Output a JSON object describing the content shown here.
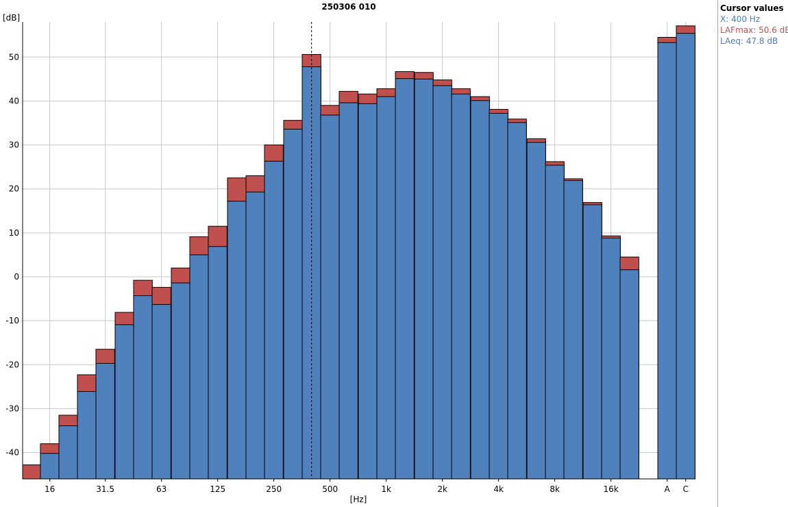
{
  "chart_data": {
    "type": "bar",
    "title": "250306 010",
    "ylabel": "[dB]",
    "xlabel": "[Hz]",
    "ylim": [
      -46,
      58
    ],
    "yticks": [
      -40,
      -30,
      -20,
      -10,
      0,
      10,
      20,
      30,
      40,
      50
    ],
    "grid": true,
    "colors": {
      "LAFmax": "#c0504d",
      "LAeq": "#4f81bd"
    },
    "categories": [
      "12.5",
      "16",
      "20",
      "25",
      "31.5",
      "40",
      "50",
      "63",
      "80",
      "100",
      "125",
      "160",
      "200",
      "250",
      "315",
      "400",
      "500",
      "630",
      "800",
      "1k",
      "1.25k",
      "1.6k",
      "2k",
      "2.5k",
      "3.15k",
      "4k",
      "5k",
      "6.3k",
      "8k",
      "10k",
      "12.5k",
      "16k",
      "20k",
      "A",
      "C"
    ],
    "tick_labels": [
      {
        "index": 1,
        "label": "16"
      },
      {
        "index": 4,
        "label": "31.5"
      },
      {
        "index": 7,
        "label": "63"
      },
      {
        "index": 10,
        "label": "125"
      },
      {
        "index": 13,
        "label": "250"
      },
      {
        "index": 16,
        "label": "500"
      },
      {
        "index": 19,
        "label": "1k"
      },
      {
        "index": 22,
        "label": "2k"
      },
      {
        "index": 25,
        "label": "4k"
      },
      {
        "index": 28,
        "label": "8k"
      },
      {
        "index": 31,
        "label": "16k"
      },
      {
        "index": 33,
        "label": "A"
      },
      {
        "index": 34,
        "label": "C"
      }
    ],
    "series": [
      {
        "name": "LAFmax",
        "values": [
          -42.8,
          -38.0,
          -31.5,
          -22.3,
          -16.5,
          -8.1,
          -0.8,
          -2.4,
          2.0,
          9.1,
          11.5,
          22.5,
          23.0,
          30.0,
          35.6,
          50.6,
          39.0,
          42.2,
          41.6,
          42.8,
          46.7,
          46.5,
          44.8,
          42.8,
          41.0,
          38.1,
          35.9,
          31.4,
          26.2,
          22.3,
          16.9,
          9.3,
          4.5,
          54.5,
          57.1
        ]
      },
      {
        "name": "LAeq",
        "values": [
          -46.0,
          -40.2,
          -33.9,
          -26.1,
          -19.7,
          -10.9,
          -4.3,
          -6.3,
          -1.4,
          5.0,
          6.9,
          17.2,
          19.3,
          26.3,
          33.6,
          47.8,
          36.8,
          39.6,
          39.4,
          41.0,
          45.1,
          45.0,
          43.5,
          41.6,
          40.1,
          37.2,
          35.1,
          30.6,
          25.4,
          21.9,
          16.4,
          8.8,
          1.6,
          53.3,
          55.4
        ]
      }
    ],
    "cursor_index": 15
  },
  "cursor_panel": {
    "title": "Cursor values",
    "x_text": "X: 400 Hz",
    "lafmax_text": "LAFmax: 50.6 dB",
    "laeq_text": "LAeq: 47.8 dB"
  }
}
